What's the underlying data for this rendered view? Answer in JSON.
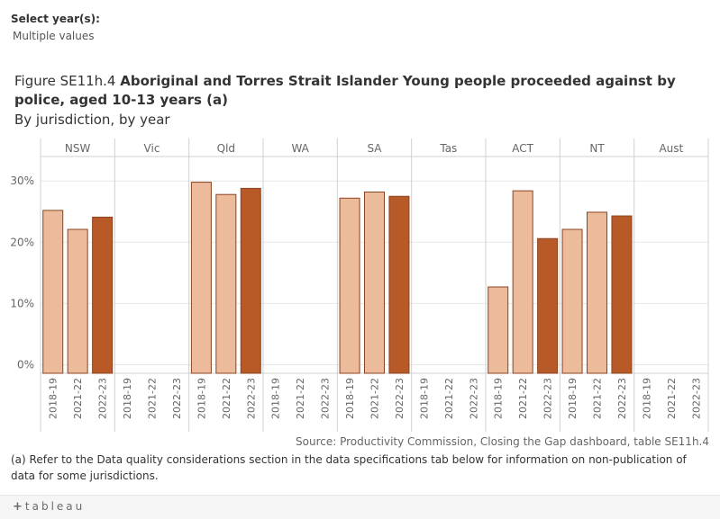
{
  "filter": {
    "label": "Select year(s):",
    "value": "Multiple values"
  },
  "figure": {
    "number": "Figure SE11h.4",
    "title": "Aboriginal and Torres Strait Islander Young people proceeded against by police, aged 10-13 years (a)",
    "subtitle": "By jurisdiction, by year"
  },
  "source": "Source: Productivity Commission, Closing the Gap dashboard, table SE11h.4",
  "footnote": "(a) Refer to the Data quality considerations section in the data specifications tab below for information on non-publication of data for some jurisdictions.",
  "brand": {
    "plus": "+",
    "name": "tableau"
  },
  "colors": {
    "light": "#ebbb9b",
    "dark": "#b85a28",
    "edge": "#8c4420",
    "grid": "#e8e8e8",
    "axis": "#d0d0d0"
  },
  "chart_data": {
    "type": "bar",
    "panels": [
      "NSW",
      "Vic",
      "Qld",
      "WA",
      "SA",
      "Tas",
      "ACT",
      "NT",
      "Aust"
    ],
    "years": [
      "2018-19",
      "2021-22",
      "2022-23"
    ],
    "highlight_year": "2022-23",
    "series": [
      {
        "panel": "NSW",
        "values": [
          25.2,
          22.1,
          24.1
        ]
      },
      {
        "panel": "Vic",
        "values": [
          null,
          null,
          null
        ]
      },
      {
        "panel": "Qld",
        "values": [
          29.8,
          27.8,
          28.8
        ]
      },
      {
        "panel": "WA",
        "values": [
          null,
          null,
          null
        ]
      },
      {
        "panel": "SA",
        "values": [
          27.2,
          28.2,
          27.5
        ]
      },
      {
        "panel": "Tas",
        "values": [
          null,
          null,
          null
        ]
      },
      {
        "panel": "ACT",
        "values": [
          12.7,
          28.4,
          20.6
        ]
      },
      {
        "panel": "NT",
        "values": [
          22.1,
          24.9,
          24.3
        ]
      },
      {
        "panel": "Aust",
        "values": [
          null,
          null,
          null
        ]
      }
    ],
    "y_ticks": [
      {
        "value": 0,
        "label": "0%"
      },
      {
        "value": 10,
        "label": "10%"
      },
      {
        "value": 20,
        "label": "20%"
      },
      {
        "value": 30,
        "label": "30%"
      }
    ],
    "ylim": [
      -1.4,
      34
    ],
    "grid": true,
    "xlabel": "",
    "ylabel": ""
  }
}
